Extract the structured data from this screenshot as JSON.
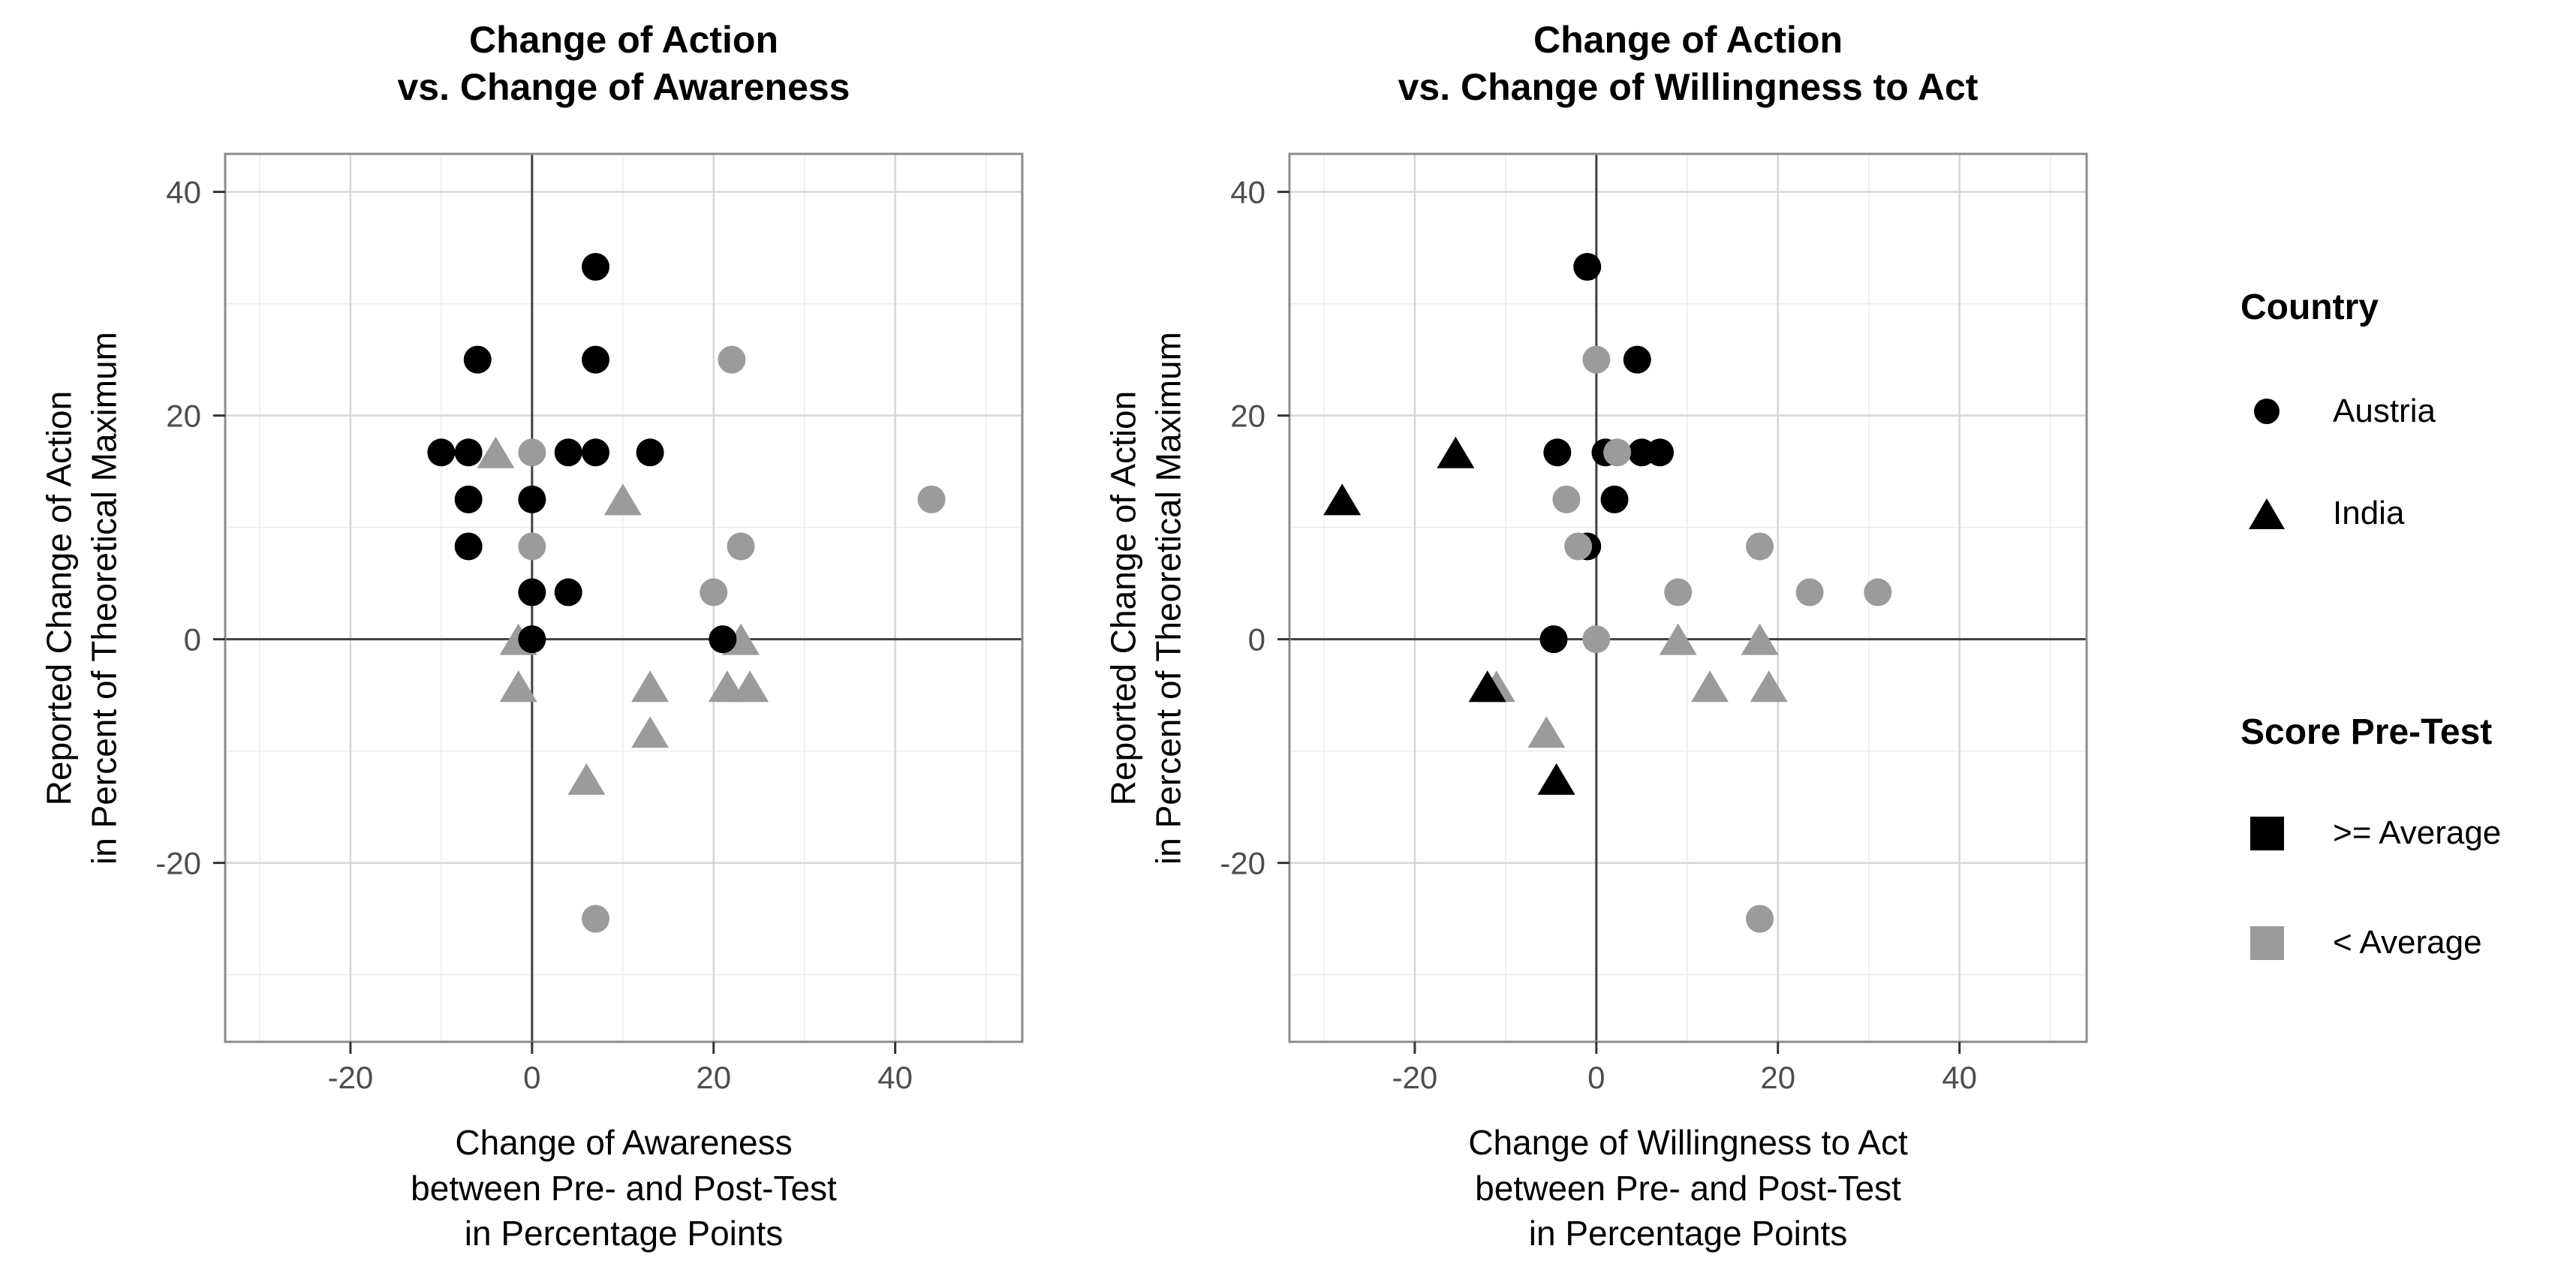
{
  "page": {
    "background": "#ffffff"
  },
  "colors": {
    "black": "#000000",
    "gray": "#9b9b9b",
    "grid_major": "#d6d6d6",
    "grid_minor": "#ececec",
    "axis_zero_line": "#404040",
    "panel_border": "#8c8c8c",
    "tick_label": "#4d4d4d",
    "tick_mark": "#333333"
  },
  "legend": {
    "country": {
      "title": "Country",
      "items": [
        {
          "label": "Austria",
          "marker": "circle"
        },
        {
          "label": "India",
          "marker": "triangle"
        }
      ]
    },
    "score": {
      "title": "Score Pre-Test",
      "items": [
        {
          "label": ">= Average",
          "color": "#000000"
        },
        {
          "label": "< Average",
          "color": "#9b9b9b"
        }
      ]
    }
  },
  "chart_data": [
    {
      "type": "scatter",
      "title": "Change of Action\nvs. Change of Awareness",
      "xlabel": "Change of Awareness\nbetween Pre- and Post-Test\nin Percentage Points",
      "ylabel": "Reported Change of Action\nin Percent of Theoretical Maximum",
      "xlim": [
        -33.8,
        54
      ],
      "ylim": [
        -36,
        43.4
      ],
      "xticks": [
        -20,
        0,
        20,
        40
      ],
      "yticks": [
        -20,
        0,
        20,
        40
      ],
      "grid_step_minor": 10,
      "vline_x": 0,
      "hline_y": 0,
      "legend_position": "right",
      "series": [
        {
          "name": "India, < Average",
          "country": "India",
          "score": "< Average",
          "marker": "triangle",
          "color": "gray",
          "points": [
            [
              -4,
              16.7
            ],
            [
              10,
              12.5
            ],
            [
              -1.5,
              0
            ],
            [
              23,
              0
            ],
            [
              -1.5,
              -4.2
            ],
            [
              13,
              -4.2
            ],
            [
              21.5,
              -4.2
            ],
            [
              24,
              -4.2
            ],
            [
              13,
              -8.3
            ],
            [
              6,
              -12.5
            ]
          ]
        },
        {
          "name": "Austria, >= Average",
          "country": "Austria",
          "score": ">= Average",
          "marker": "circle",
          "color": "black",
          "points": [
            [
              7,
              33.3
            ],
            [
              -6,
              25
            ],
            [
              7,
              25
            ],
            [
              -10,
              16.7
            ],
            [
              -7,
              16.7
            ],
            [
              4,
              16.7
            ],
            [
              7,
              16.7
            ],
            [
              13,
              16.7
            ],
            [
              -7,
              12.5
            ],
            [
              0,
              12.5
            ],
            [
              -7,
              8.3
            ],
            [
              0,
              4.2
            ],
            [
              4,
              4.2
            ],
            [
              0,
              0
            ],
            [
              21,
              0
            ]
          ]
        },
        {
          "name": "Austria, < Average",
          "country": "Austria",
          "score": "< Average",
          "marker": "circle",
          "color": "gray",
          "points": [
            [
              22,
              25
            ],
            [
              0,
              16.7
            ],
            [
              44,
              12.5
            ],
            [
              0,
              8.3
            ],
            [
              23,
              8.3
            ],
            [
              20,
              4.2
            ],
            [
              7,
              -25
            ]
          ]
        },
        {
          "name": "India, >= Average",
          "country": "India",
          "score": ">= Average",
          "marker": "triangle",
          "color": "black",
          "points": []
        }
      ]
    },
    {
      "type": "scatter",
      "title": "Change of Action\nvs. Change of Willingness to Act",
      "xlabel": "Change of Willingness to Act\nbetween Pre- and Post-Test\nin Percentage Points",
      "ylabel": "Reported Change of Action\nin Percent of Theoretical Maximum",
      "xlim": [
        -33.8,
        54
      ],
      "ylim": [
        -36,
        43.4
      ],
      "xticks": [
        -20,
        0,
        20,
        40
      ],
      "yticks": [
        -20,
        0,
        20,
        40
      ],
      "grid_step_minor": 10,
      "vline_x": 0,
      "hline_y": 0,
      "legend_position": "right",
      "series": [
        {
          "name": "India, < Average",
          "country": "India",
          "score": "< Average",
          "marker": "triangle",
          "color": "gray",
          "points": [
            [
              9,
              0
            ],
            [
              18,
              0
            ],
            [
              -11,
              -4.2
            ],
            [
              12.5,
              -4.2
            ],
            [
              19,
              -4.2
            ],
            [
              -5.5,
              -8.3
            ]
          ]
        },
        {
          "name": "Austria, >= Average",
          "country": "Austria",
          "score": ">= Average",
          "marker": "circle",
          "color": "black",
          "points": [
            [
              -1,
              33.3
            ],
            [
              4.5,
              25
            ],
            [
              -4.3,
              16.7
            ],
            [
              1,
              16.7
            ],
            [
              5,
              16.7
            ],
            [
              7,
              16.7
            ],
            [
              2,
              12.5
            ],
            [
              -1,
              8.3
            ],
            [
              -4.7,
              0
            ]
          ]
        },
        {
          "name": "Austria, < Average",
          "country": "Austria",
          "score": "< Average",
          "marker": "circle",
          "color": "gray",
          "points": [
            [
              0,
              25
            ],
            [
              2.3,
              16.7
            ],
            [
              -3.3,
              12.5
            ],
            [
              -2,
              8.3
            ],
            [
              18,
              8.3
            ],
            [
              9,
              4.2
            ],
            [
              23.5,
              4.2
            ],
            [
              31,
              4.2
            ],
            [
              0,
              0
            ],
            [
              18,
              -25
            ]
          ]
        },
        {
          "name": "India, >= Average",
          "country": "India",
          "score": ">= Average",
          "marker": "triangle",
          "color": "black",
          "points": [
            [
              -15.5,
              16.7
            ],
            [
              -28,
              12.5
            ],
            [
              -12,
              -4.2
            ],
            [
              -4.4,
              -12.5
            ]
          ]
        }
      ]
    }
  ]
}
